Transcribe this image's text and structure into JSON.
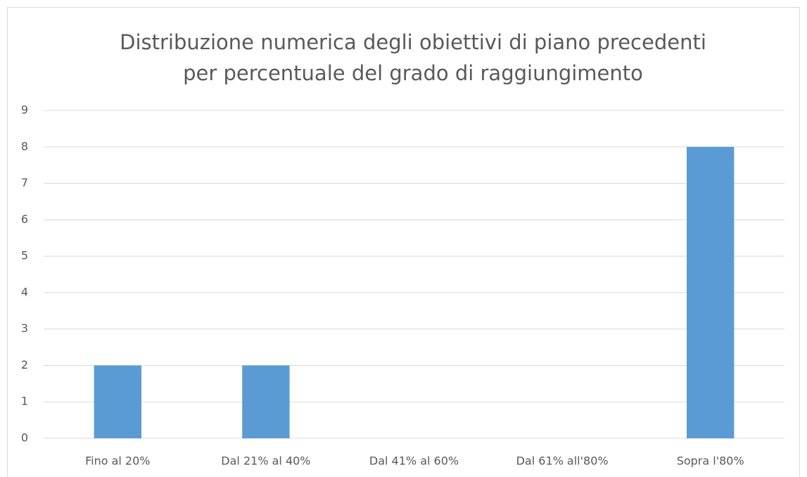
{
  "chart_data": {
    "type": "bar",
    "title": [
      "Distribuzione numerica degli obiettivi di piano precedenti",
      "per percentuale del grado di raggiungimento"
    ],
    "categories": [
      "Fino al 20%",
      "Dal 21% al 40%",
      "Dal 41% al 60%",
      "Dal 61% all'80%",
      "Sopra l'80%"
    ],
    "values": [
      2,
      2,
      0,
      0,
      8
    ],
    "color": "#5b9bd5",
    "ylim": [
      0,
      9
    ],
    "yticks": [
      0,
      1,
      2,
      3,
      4,
      5,
      6,
      7,
      8,
      9
    ],
    "grid": true
  }
}
